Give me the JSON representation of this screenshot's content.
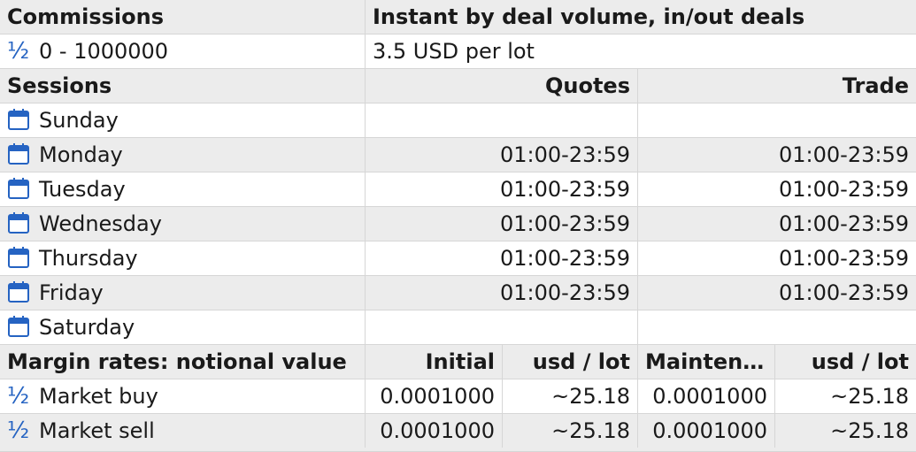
{
  "commissions": {
    "header_label": "Commissions",
    "header_value": "Instant by deal volume, in/out deals",
    "tier_icon": "fraction-half-icon",
    "tier_range": "0 - 1000000",
    "tier_value": "3.5 USD per lot"
  },
  "sessions": {
    "header_label": "Sessions",
    "quotes_label": "Quotes",
    "trade_label": "Trade",
    "day_icon": "calendar-icon",
    "days": [
      {
        "name": "Sunday",
        "quotes": "",
        "trade": ""
      },
      {
        "name": "Monday",
        "quotes": "01:00-23:59",
        "trade": "01:00-23:59"
      },
      {
        "name": "Tuesday",
        "quotes": "01:00-23:59",
        "trade": "01:00-23:59"
      },
      {
        "name": "Wednesday",
        "quotes": "01:00-23:59",
        "trade": "01:00-23:59"
      },
      {
        "name": "Thursday",
        "quotes": "01:00-23:59",
        "trade": "01:00-23:59"
      },
      {
        "name": "Friday",
        "quotes": "01:00-23:59",
        "trade": "01:00-23:59"
      },
      {
        "name": "Saturday",
        "quotes": "",
        "trade": ""
      }
    ]
  },
  "margin": {
    "header_label": "Margin rates: notional value",
    "initial_label": "Initial",
    "usd_lot_label": "usd / lot",
    "maintenance_label": "Maintena...",
    "usd_lot_label_2": "usd / lot",
    "rate_icon": "fraction-half-icon",
    "rows": [
      {
        "name": "Market buy",
        "initial": "0.0001000",
        "initial_usd": "~25.18",
        "maintenance": "0.0001000",
        "maintenance_usd": "~25.18"
      },
      {
        "name": "Market sell",
        "initial": "0.0001000",
        "initial_usd": "~25.18",
        "maintenance": "0.0001000",
        "maintenance_usd": "~25.18"
      }
    ]
  },
  "colors": {
    "header_bg": "#ececec",
    "grid_line": "#d6d6d6",
    "icon_blue": "#2563c2"
  }
}
